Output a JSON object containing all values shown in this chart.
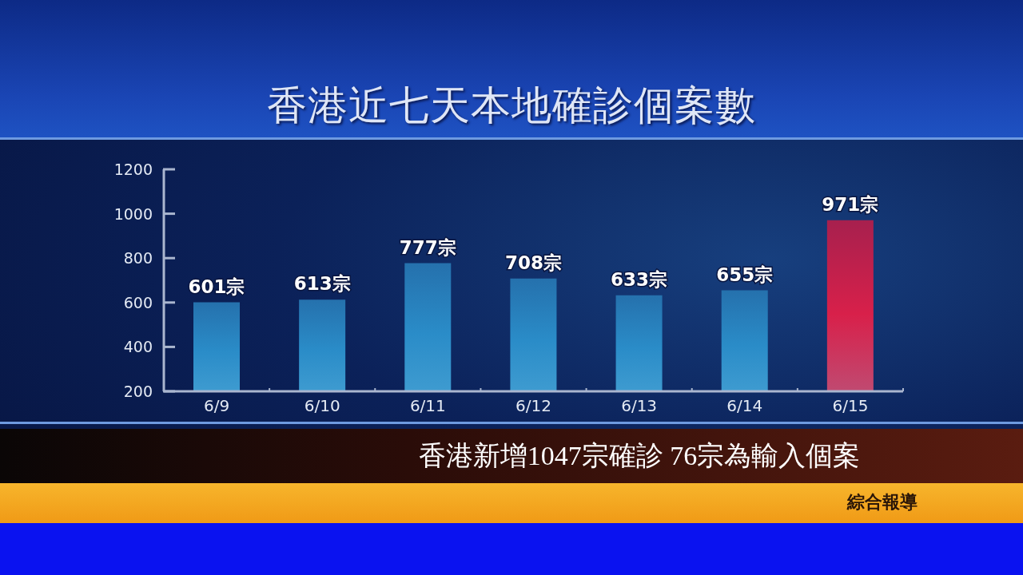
{
  "chart_data": {
    "type": "bar",
    "title": "香港近七天本地確診個案數",
    "categories": [
      "6/9",
      "6/10",
      "6/11",
      "6/12",
      "6/13",
      "6/14",
      "6/15"
    ],
    "values": [
      601,
      613,
      777,
      708,
      633,
      655,
      971
    ],
    "colors": [
      "#2a8cc8",
      "#2a8cc8",
      "#2a8cc8",
      "#2a8cc8",
      "#2a8cc8",
      "#2a8cc8",
      "#d8204a"
    ],
    "value_labels": [
      "601宗",
      "613宗",
      "777宗",
      "708宗",
      "633宗",
      "655宗",
      "971宗"
    ],
    "ylim": [
      200,
      1200
    ],
    "yticks": [
      200,
      400,
      600,
      800,
      1000,
      1200
    ],
    "annotations": [
      "香港新增1047宗確診 76宗為輸入個案",
      "綜合報導"
    ]
  }
}
